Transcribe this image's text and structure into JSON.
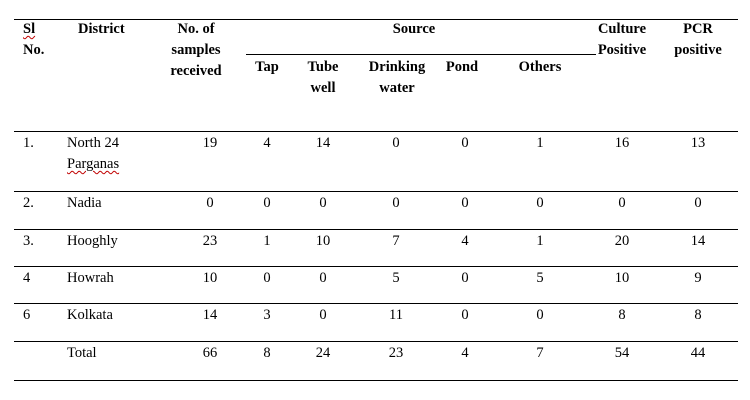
{
  "table": {
    "headers": {
      "sl_no": [
        "Sl",
        "No."
      ],
      "district": "District",
      "samples": [
        "No. of",
        "samples",
        "received"
      ],
      "source": "Source",
      "tap": "Tap",
      "tube_well": [
        "Tube",
        "well"
      ],
      "drinking_water": [
        "Drinking",
        "water"
      ],
      "pond": "Pond",
      "others": "Others",
      "culture_positive": [
        "Culture",
        "Positive"
      ],
      "pcr_positive": [
        "PCR",
        "positive"
      ]
    },
    "rows": [
      {
        "sl": "1.",
        "district": [
          "North 24",
          "Parganas"
        ],
        "samples": "19",
        "tap": "4",
        "tube_well": "14",
        "drinking_water": "0",
        "pond": "0",
        "others": "1",
        "culture": "16",
        "pcr": "13"
      },
      {
        "sl": "2.",
        "district": [
          "Nadia"
        ],
        "samples": "0",
        "tap": "0",
        "tube_well": "0",
        "drinking_water": "0",
        "pond": "0",
        "others": "0",
        "culture": "0",
        "pcr": "0"
      },
      {
        "sl": "3.",
        "district": [
          "Hooghly"
        ],
        "samples": "23",
        "tap": "1",
        "tube_well": "10",
        "drinking_water": "7",
        "pond": "4",
        "others": "1",
        "culture": "20",
        "pcr": "14"
      },
      {
        "sl": "4",
        "district": [
          "Howrah"
        ],
        "samples": "10",
        "tap": "0",
        "tube_well": "0",
        "drinking_water": "5",
        "pond": "0",
        "others": "5",
        "culture": "10",
        "pcr": "9"
      },
      {
        "sl": "6",
        "district": [
          "Kolkata"
        ],
        "samples": "14",
        "tap": "3",
        "tube_well": "0",
        "drinking_water": "11",
        "pond": "0",
        "others": "0",
        "culture": "8",
        "pcr": "8"
      },
      {
        "sl": "",
        "district": [
          "Total"
        ],
        "samples": "66",
        "tap": "8",
        "tube_well": "24",
        "drinking_water": "23",
        "pond": "4",
        "others": "7",
        "culture": "54",
        "pcr": "44"
      }
    ]
  }
}
